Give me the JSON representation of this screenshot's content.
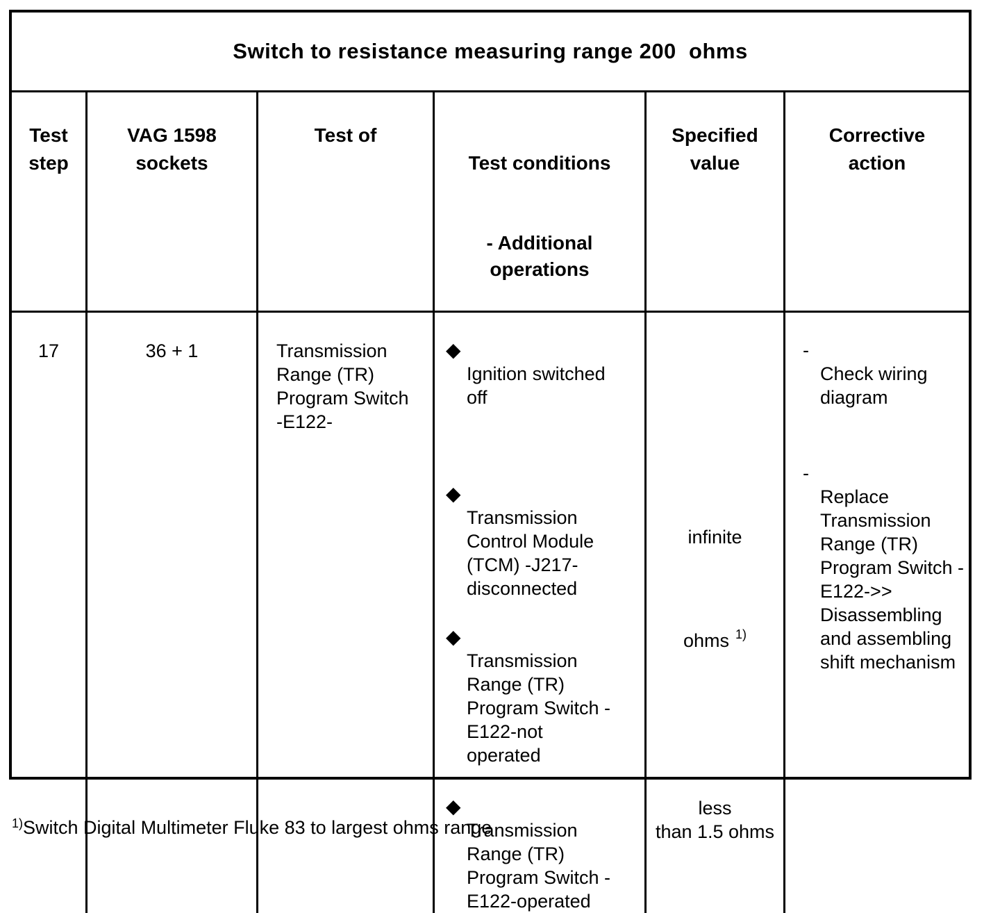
{
  "document": {
    "title": "Switch to resistance measuring range 200  ohms",
    "glyphs": {
      "bullet": "◆",
      "dash": "-"
    },
    "headers": {
      "test_step": "Test\nstep",
      "vag_sockets": "VAG 1598\nsockets",
      "test_of": "Test of",
      "test_conditions": "Test conditions",
      "additional_operations": "- Additional\noperations",
      "specified_value": "Specified\nvalue",
      "corrective_action": "Corrective\naction"
    },
    "row": {
      "test_step": "17",
      "vag_sockets": "36 + 1",
      "test_of": "Transmission\nRange (TR)\nProgram Switch\n-E122-",
      "conditions": [
        {
          "text": "Ignition switched\noff"
        },
        {
          "text": "Transmission\nControl Module\n(TCM) -J217-\ndisconnected"
        },
        {
          "text": "Transmission\nRange (TR)\nProgram Switch -\nE122-not\noperated"
        },
        {
          "text": "Transmission\nRange (TR)\nProgram Switch -\nE122-operated"
        }
      ],
      "specified_values": [
        {
          "text": "infinite",
          "superscript": ""
        },
        {
          "text": "ohms",
          "superscript": "1)"
        },
        {
          "text": "less\nthan 1.5 ohms",
          "superscript": ""
        }
      ],
      "corrective_actions": [
        {
          "text": "Check wiring\ndiagram"
        },
        {
          "text": "Replace\nTransmission\nRange (TR)\nProgram Switch -\nE122->>\nDisassembling\nand assembling\nshift mechanism"
        }
      ]
    },
    "footnote": {
      "marker": "1)",
      "text": "Switch Digital Multimeter Fluke 83 to largest ohms range"
    },
    "colors": {
      "ink": "#000000",
      "paper": "#ffffff"
    }
  }
}
